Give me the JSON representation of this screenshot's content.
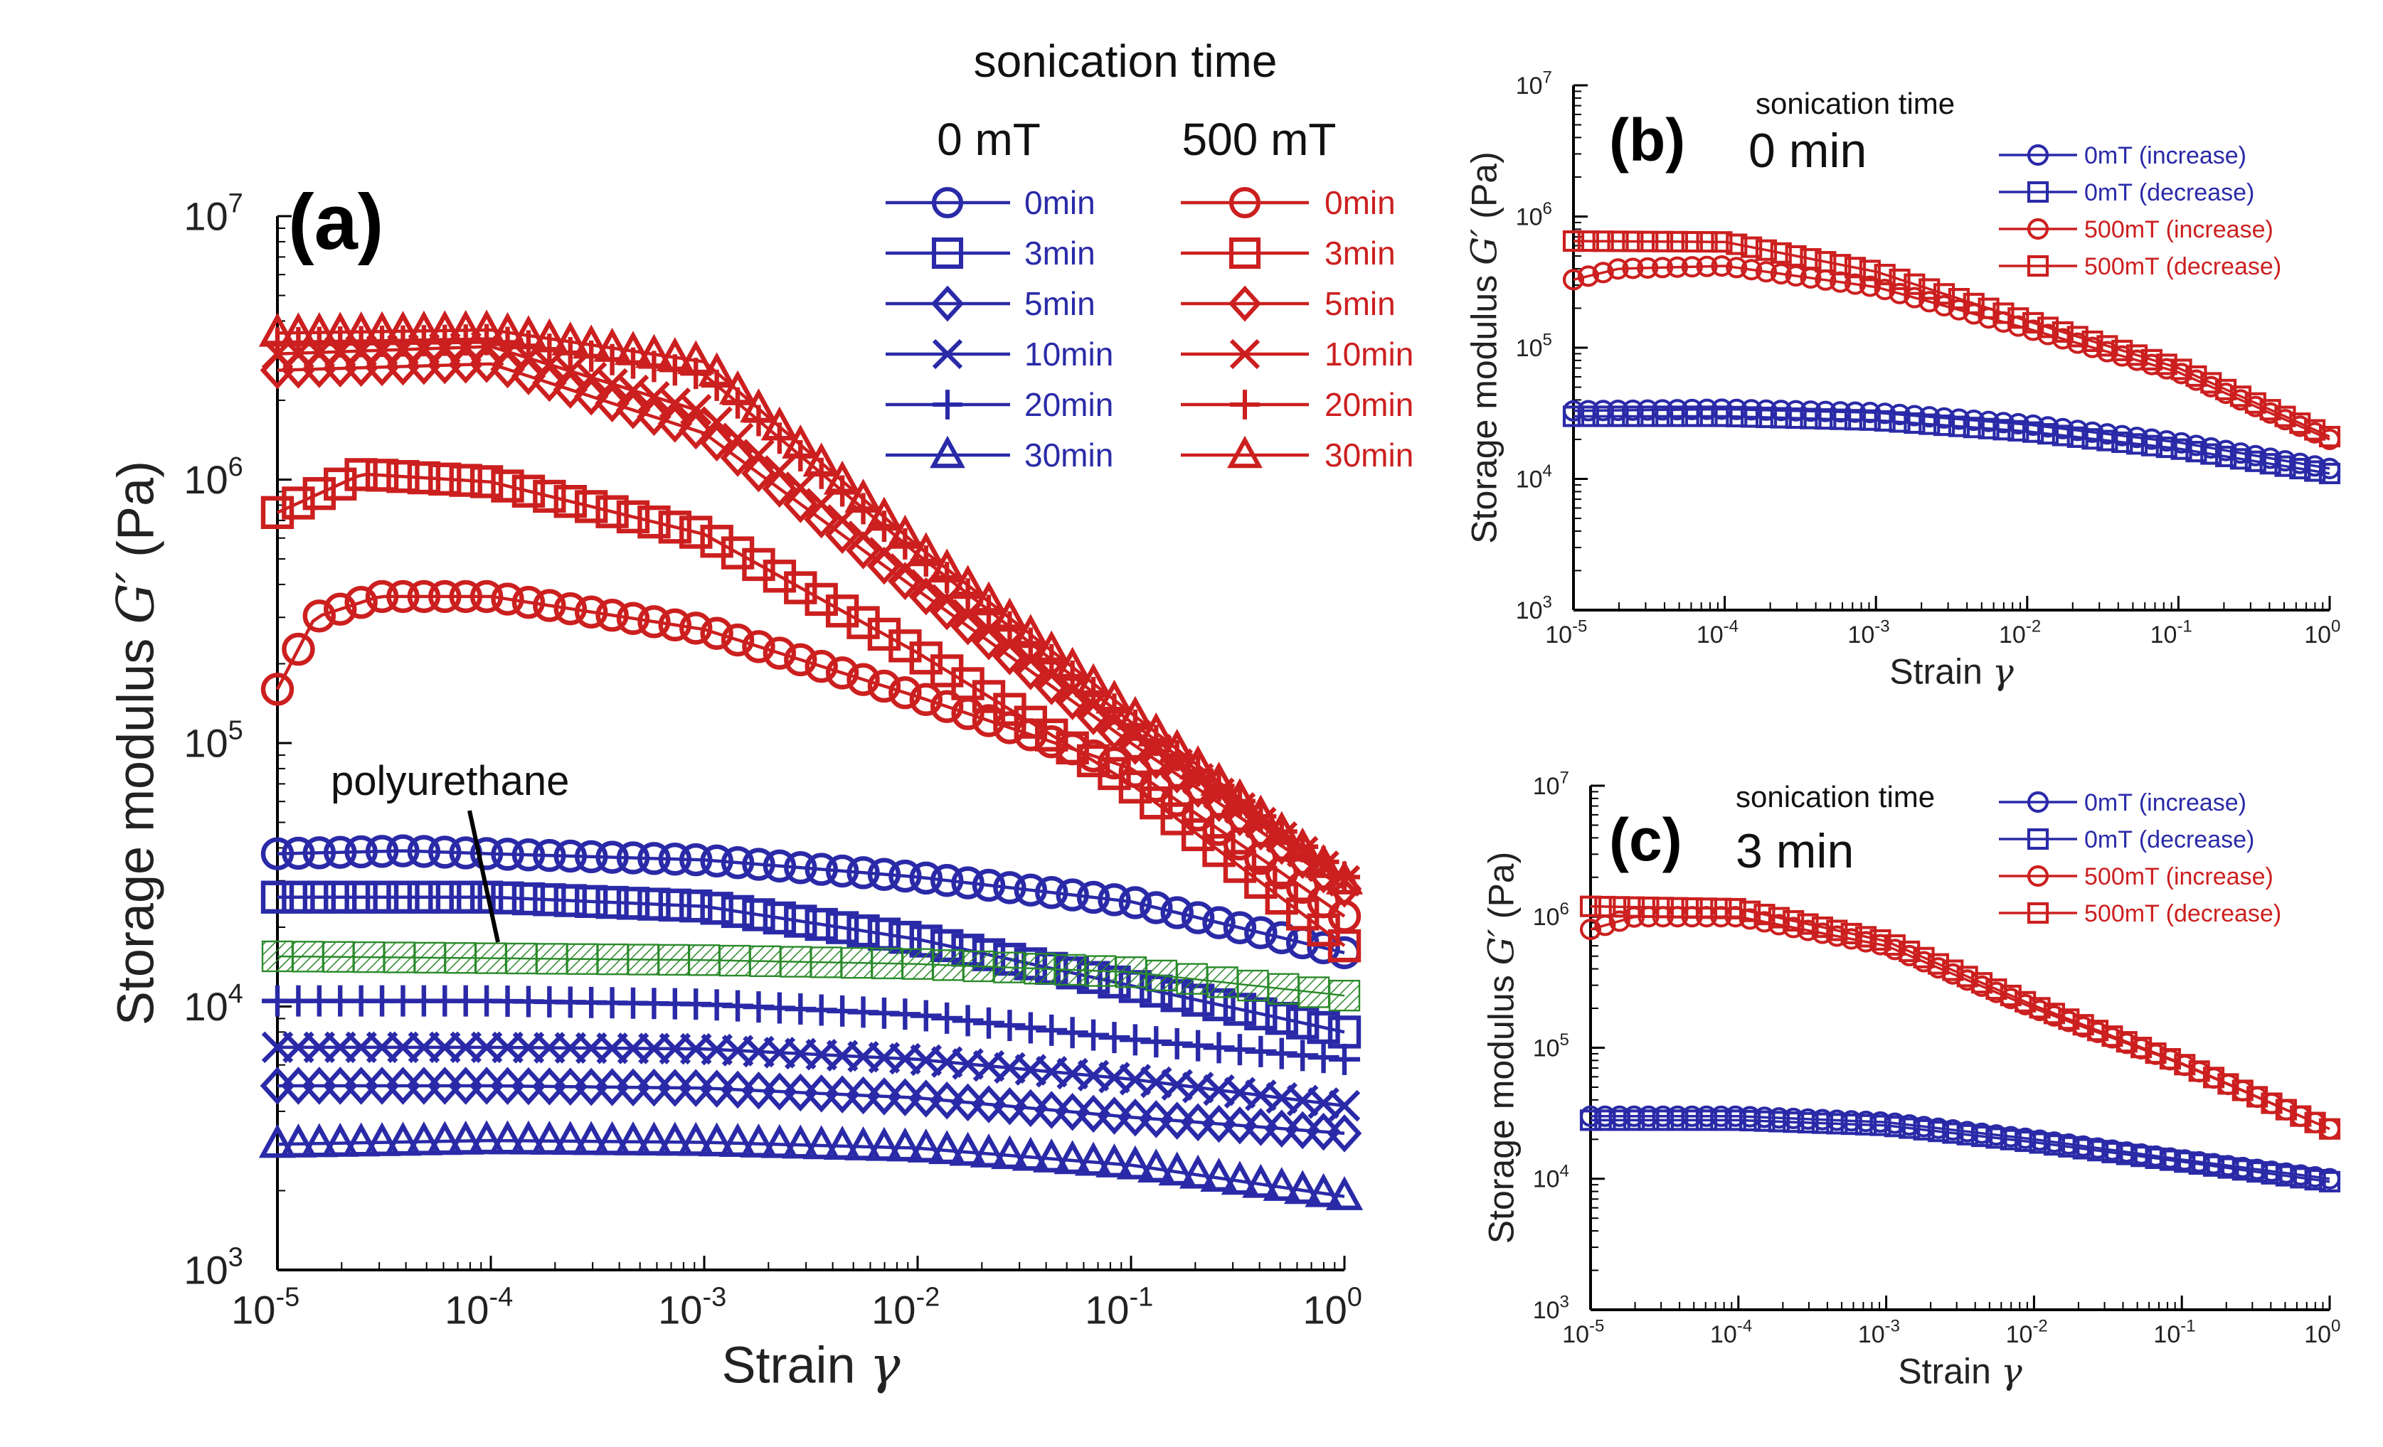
{
  "chart_data": [
    {
      "panel": "(a)",
      "type": "line",
      "scale": "log-log",
      "xlabel_main": "Strain",
      "xlabel_symbol": "γ",
      "ylabel_main": "Storage modulus",
      "ylabel_symbol": "G′",
      "ylabel_unit": "(Pa)",
      "xlim": [
        1e-05,
        1
      ],
      "ylim": [
        1000,
        10000000
      ],
      "xticks": [
        "10",
        "10",
        "10",
        "10",
        "10",
        "10"
      ],
      "xtick_exponents": [
        "-5",
        "-4",
        "-3",
        "-2",
        "-1",
        "0"
      ],
      "yticks": [
        "10",
        "10",
        "10",
        "10",
        "10"
      ],
      "ytick_exponents": [
        "3",
        "4",
        "5",
        "6",
        "7"
      ],
      "legend_title": "sonication time",
      "legend_col1_title": "0 mT",
      "legend_col2_title": "500 mT",
      "annotation": "polyurethane",
      "colors": {
        "blue": "#2a2aa8",
        "red": "#cc1f1f",
        "green": "#2a8a2a"
      },
      "series": [
        {
          "name": "0min",
          "group": "0 mT",
          "marker": "circle",
          "color": "blue",
          "points": [
            [
              1e-05,
              38000
            ],
            [
              4e-05,
              39000
            ],
            [
              0.0001,
              38000
            ],
            [
              0.001,
              36000
            ],
            [
              0.01,
              31000
            ],
            [
              0.1,
              25000
            ],
            [
              1,
              16000
            ]
          ]
        },
        {
          "name": "3min",
          "group": "0 mT",
          "marker": "square",
          "color": "blue",
          "points": [
            [
              1e-05,
              26000
            ],
            [
              0.0001,
              26000
            ],
            [
              0.001,
              24000
            ],
            [
              0.01,
              18000
            ],
            [
              0.1,
              12000
            ],
            [
              1,
              8000
            ]
          ]
        },
        {
          "name": "5min",
          "group": "0 mT",
          "marker": "diamond",
          "color": "blue",
          "points": [
            [
              1e-05,
              5000
            ],
            [
              0.0001,
              5000
            ],
            [
              0.001,
              4900
            ],
            [
              0.01,
              4500
            ],
            [
              0.1,
              3800
            ],
            [
              1,
              3300
            ]
          ]
        },
        {
          "name": "10min",
          "group": "0 mT",
          "marker": "x",
          "color": "blue",
          "points": [
            [
              1e-05,
              7000
            ],
            [
              0.0001,
              7000
            ],
            [
              0.001,
              6900
            ],
            [
              0.01,
              6300
            ],
            [
              0.1,
              5300
            ],
            [
              1,
              4200
            ]
          ]
        },
        {
          "name": "20min",
          "group": "0 mT",
          "marker": "plus",
          "color": "blue",
          "points": [
            [
              1e-05,
              10500
            ],
            [
              0.0001,
              10500
            ],
            [
              0.001,
              10200
            ],
            [
              0.01,
              9300
            ],
            [
              0.1,
              7500
            ],
            [
              1,
              6300
            ]
          ]
        },
        {
          "name": "30min",
          "group": "0 mT",
          "marker": "triangle",
          "color": "blue",
          "points": [
            [
              1e-05,
              3000
            ],
            [
              0.0001,
              3100
            ],
            [
              0.001,
              3050
            ],
            [
              0.01,
              2900
            ],
            [
              0.1,
              2500
            ],
            [
              1,
              1900
            ]
          ]
        },
        {
          "name": "0min",
          "group": "500 mT",
          "marker": "circle",
          "color": "red",
          "points": [
            [
              1e-05,
              160000
            ],
            [
              1.5e-05,
              300000
            ],
            [
              3e-05,
              360000
            ],
            [
              0.0001,
              360000
            ],
            [
              0.001,
              270000
            ],
            [
              0.01,
              150000
            ],
            [
              0.1,
              80000
            ],
            [
              1,
              22000
            ]
          ]
        },
        {
          "name": "3min",
          "group": "500 mT",
          "marker": "square",
          "color": "red",
          "points": [
            [
              1e-05,
              750000
            ],
            [
              2.5e-05,
              1050000
            ],
            [
              0.0001,
              980000
            ],
            [
              0.001,
              620000
            ],
            [
              0.01,
              220000
            ],
            [
              0.1,
              70000
            ],
            [
              1,
              17000
            ]
          ]
        },
        {
          "name": "5min",
          "group": "500 mT",
          "marker": "diamond",
          "color": "red",
          "points": [
            [
              1e-05,
              2600000
            ],
            [
              0.0001,
              2750000
            ],
            [
              0.001,
              1500000
            ],
            [
              0.01,
              380000
            ],
            [
              0.1,
              100000
            ],
            [
              1,
              28000
            ]
          ]
        },
        {
          "name": "10min",
          "group": "500 mT",
          "marker": "x",
          "color": "red",
          "points": [
            [
              1e-05,
              3000000
            ],
            [
              0.0001,
              3200000
            ],
            [
              0.001,
              1800000
            ],
            [
              0.01,
              420000
            ],
            [
              0.1,
              110000
            ],
            [
              1,
              30000
            ]
          ]
        },
        {
          "name": "20min",
          "group": "500 mT",
          "marker": "plus",
          "color": "red",
          "points": [
            [
              1e-05,
              3300000
            ],
            [
              0.0001,
              3400000
            ],
            [
              0.001,
              2500000
            ],
            [
              0.01,
              520000
            ],
            [
              0.1,
              120000
            ],
            [
              1,
              31000
            ]
          ]
        },
        {
          "name": "30min",
          "group": "500 mT",
          "marker": "triangle",
          "color": "red",
          "points": [
            [
              1e-05,
              3600000
            ],
            [
              0.0001,
              3700000
            ],
            [
              0.001,
              2800000
            ],
            [
              0.01,
              560000
            ],
            [
              0.1,
              130000
            ],
            [
              1,
              30000
            ]
          ]
        },
        {
          "name": "polyurethane",
          "group": "reference",
          "marker": "square-hatched",
          "color": "green",
          "points": [
            [
              1e-05,
              15500
            ],
            [
              0.001,
              15000
            ],
            [
              0.01,
              14500
            ],
            [
              0.1,
              13500
            ],
            [
              1,
              11000
            ]
          ]
        }
      ]
    },
    {
      "panel": "(b)",
      "type": "line",
      "scale": "log-log",
      "xlabel_main": "Strain",
      "xlabel_symbol": "γ",
      "ylabel_main": "Storage modulus",
      "ylabel_symbol": "G′",
      "ylabel_unit": "(Pa)",
      "xlim": [
        1e-05,
        1
      ],
      "ylim": [
        1000,
        10000000
      ],
      "xticks": [
        "10",
        "10",
        "10",
        "10",
        "10",
        "10"
      ],
      "xtick_exponents": [
        "-5",
        "-4",
        "-3",
        "-2",
        "-1",
        "0"
      ],
      "yticks": [
        "10",
        "10",
        "10",
        "10",
        "10"
      ],
      "ytick_exponents": [
        "3",
        "4",
        "5",
        "6",
        "7"
      ],
      "annotation_title": "sonication time",
      "annotation_value": "0 min",
      "series": [
        {
          "name": "0mT (increase)",
          "marker": "circle",
          "color": "blue",
          "points": [
            [
              1e-05,
              33000
            ],
            [
              0.0001,
              34000
            ],
            [
              0.001,
              32000
            ],
            [
              0.01,
              26000
            ],
            [
              0.1,
              19000
            ],
            [
              1,
              12000
            ]
          ]
        },
        {
          "name": "0mT (decrease)",
          "marker": "square",
          "color": "blue",
          "points": [
            [
              1e-05,
              30000
            ],
            [
              0.0001,
              30000
            ],
            [
              0.001,
              28000
            ],
            [
              0.01,
              23000
            ],
            [
              0.1,
              17000
            ],
            [
              1,
              11000
            ]
          ]
        },
        {
          "name": "500mT (increase)",
          "marker": "circle",
          "color": "red",
          "points": [
            [
              1e-05,
              330000
            ],
            [
              2e-05,
              400000
            ],
            [
              0.0001,
              420000
            ],
            [
              0.001,
              290000
            ],
            [
              0.01,
              140000
            ],
            [
              0.1,
              65000
            ],
            [
              1,
              20000
            ]
          ]
        },
        {
          "name": "500mT (decrease)",
          "marker": "square",
          "color": "red",
          "points": [
            [
              1e-05,
              650000
            ],
            [
              0.0001,
              640000
            ],
            [
              0.001,
              380000
            ],
            [
              0.01,
              160000
            ],
            [
              0.1,
              70000
            ],
            [
              1,
              21000
            ]
          ]
        }
      ]
    },
    {
      "panel": "(c)",
      "type": "line",
      "scale": "log-log",
      "xlabel_main": "Strain",
      "xlabel_symbol": "γ",
      "ylabel_main": "Storage modulus",
      "ylabel_symbol": "G′",
      "ylabel_unit": "(Pa)",
      "xlim": [
        1e-05,
        1
      ],
      "ylim": [
        1000,
        10000000
      ],
      "xticks": [
        "10",
        "10",
        "10",
        "10",
        "10",
        "10"
      ],
      "xtick_exponents": [
        "-5",
        "-4",
        "-3",
        "-2",
        "-1",
        "0"
      ],
      "yticks": [
        "10",
        "10",
        "10",
        "10",
        "10"
      ],
      "ytick_exponents": [
        "3",
        "4",
        "5",
        "6",
        "7"
      ],
      "annotation_title": "sonication time",
      "annotation_value": "3 min",
      "series": [
        {
          "name": "0mT (increase)",
          "marker": "circle",
          "color": "blue",
          "points": [
            [
              1e-05,
              30000
            ],
            [
              0.0001,
              30000
            ],
            [
              0.001,
              27000
            ],
            [
              0.01,
              20000
            ],
            [
              0.1,
              14000
            ],
            [
              1,
              10000
            ]
          ]
        },
        {
          "name": "0mT (decrease)",
          "marker": "square",
          "color": "blue",
          "points": [
            [
              1e-05,
              28000
            ],
            [
              0.0001,
              28000
            ],
            [
              0.001,
              25500
            ],
            [
              0.01,
              19000
            ],
            [
              0.1,
              13500
            ],
            [
              1,
              9500
            ]
          ]
        },
        {
          "name": "500mT (increase)",
          "marker": "circle",
          "color": "red",
          "points": [
            [
              1e-05,
              800000
            ],
            [
              2e-05,
              1000000
            ],
            [
              0.0001,
              1000000
            ],
            [
              0.001,
              600000
            ],
            [
              0.01,
              200000
            ],
            [
              0.1,
              75000
            ],
            [
              1,
              24000
            ]
          ]
        },
        {
          "name": "500mT (decrease)",
          "marker": "square",
          "color": "red",
          "points": [
            [
              1e-05,
              1200000
            ],
            [
              0.0001,
              1150000
            ],
            [
              0.001,
              650000
            ],
            [
              0.01,
              210000
            ],
            [
              0.1,
              76000
            ],
            [
              1,
              24000
            ]
          ]
        }
      ]
    }
  ]
}
